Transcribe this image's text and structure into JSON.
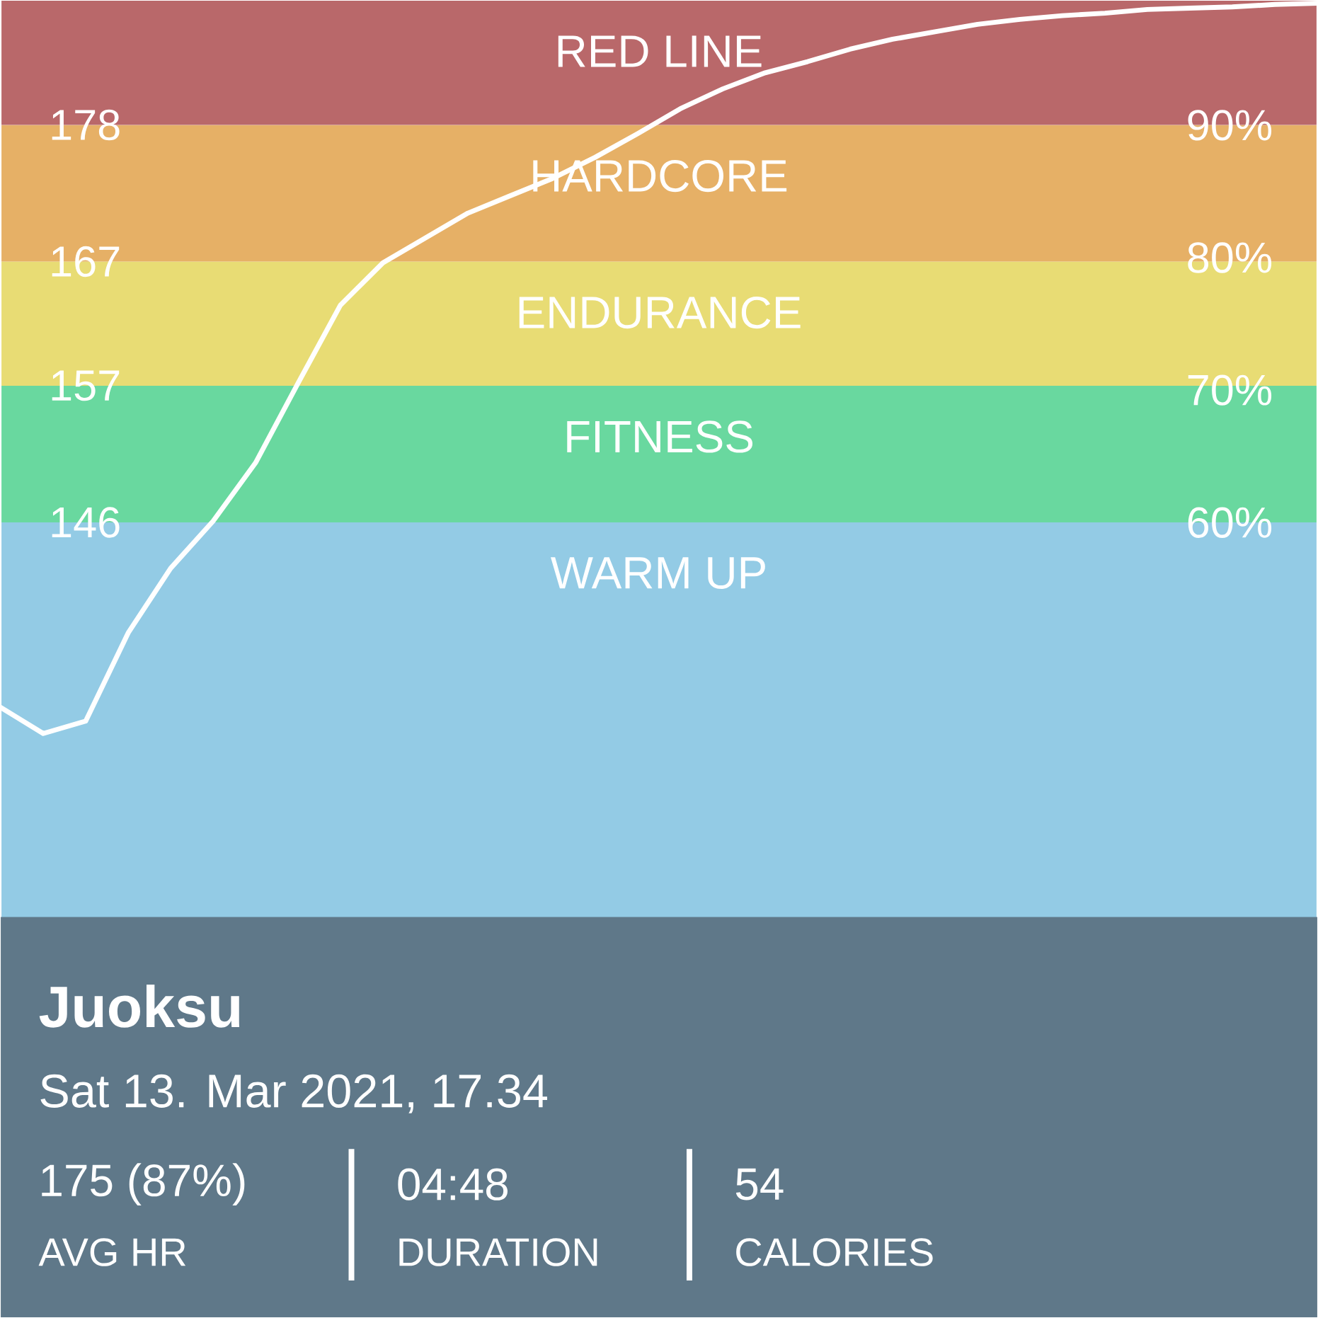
{
  "chart_data": {
    "type": "line",
    "title": "Juoksu",
    "subtitle": "Sat 13. Mar 2021, 17.34",
    "categories": [
      null,
      null,
      null,
      null,
      null,
      null,
      null,
      null,
      null,
      null,
      null,
      null,
      null,
      null,
      null,
      null,
      null,
      null,
      null,
      null,
      null,
      null,
      null,
      null,
      null,
      null,
      null,
      null,
      null,
      null,
      null,
      null
    ],
    "series": [
      {
        "color": "#ffffff",
        "values": [
          131.1,
          129.0,
          130.0,
          137.1,
          142.3,
          146.1,
          150.8,
          157.2,
          163.5,
          166.9,
          168.9,
          170.9,
          172.3,
          173.7,
          175.4,
          177.3,
          179.3,
          180.9,
          182.2,
          183.1,
          184.1,
          184.9,
          185.5,
          186.1,
          186.5,
          186.8,
          187.0,
          187.3,
          187.4,
          187.5,
          187.7,
          187.8
        ]
      }
    ],
    "ylim": [
      82,
      188
    ],
    "yticks": [
      146,
      157,
      167,
      178
    ],
    "y2lim": [
      0,
      99.4
    ],
    "y2ticks": [
      {
        "value": 60,
        "label": "60%"
      },
      {
        "value": 70,
        "label": "70%"
      },
      {
        "value": 80,
        "label": "80%"
      },
      {
        "value": 90,
        "label": "90%"
      }
    ],
    "bands": [
      {
        "axis": "y",
        "from": 82,
        "to": 146,
        "label": "WARM UP",
        "color": "#93cbe5"
      },
      {
        "axis": "y",
        "from": 146,
        "to": 157,
        "label": "FITNESS",
        "color": "#69d89f"
      },
      {
        "axis": "y",
        "from": 157,
        "to": 167,
        "label": "ENDURANCE",
        "color": "#e8dc74"
      },
      {
        "axis": "y",
        "from": 167,
        "to": 178,
        "label": "HARDCORE",
        "color": "#e6b066"
      },
      {
        "axis": "y",
        "from": 178,
        "to": 188,
        "label": "RED LINE",
        "color": "#b9686a"
      }
    ],
    "annotations": [
      "175 (87%)",
      "AVG HR",
      "04:48",
      "DURATION",
      "54",
      "CALORIES"
    ],
    "grid": false,
    "marker": "none",
    "line_style": "solid"
  }
}
